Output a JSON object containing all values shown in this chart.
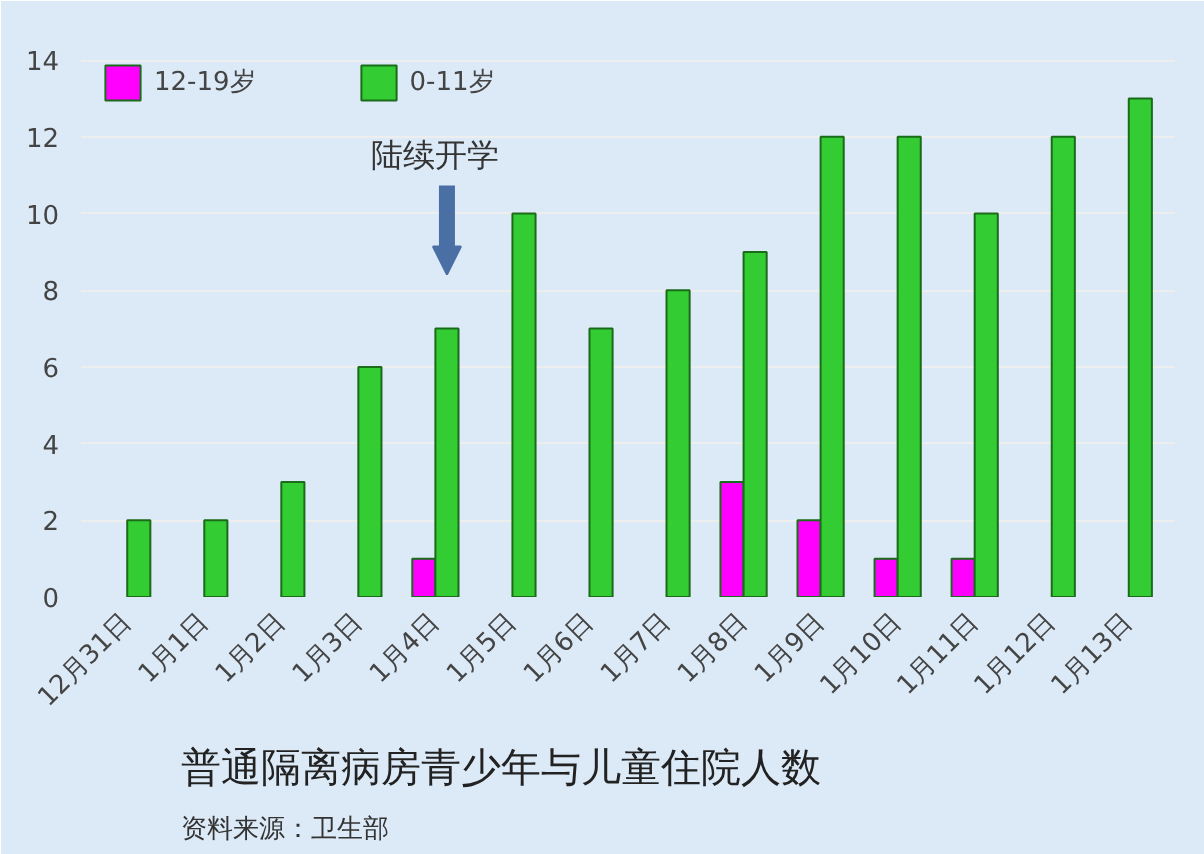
{
  "chart_data": {
    "type": "bar",
    "title": "普通隔离病房青少年与儿童住院人数",
    "categories": [
      "12月31日",
      "1月1日",
      "1月2日",
      "1月3日",
      "1月4日",
      "1月5日",
      "1月6日",
      "1月7日",
      "1月8日",
      "1月9日",
      "1月10日",
      "1月11日",
      "1月12日",
      "1月13日"
    ],
    "series": [
      {
        "name": "12-19岁",
        "color": "#ff00ff",
        "values": [
          null,
          null,
          null,
          null,
          1,
          null,
          null,
          null,
          3,
          2,
          1,
          1,
          null,
          null
        ]
      },
      {
        "name": "0-11岁",
        "color": "#33cc33",
        "values": [
          2,
          2,
          3,
          6,
          7,
          10,
          7,
          8,
          9,
          12,
          12,
          10,
          12,
          13
        ]
      }
    ],
    "ylim": [
      0,
      14.5
    ],
    "yticks": [
      0,
      2,
      4,
      6,
      8,
      10,
      12,
      14
    ],
    "grid": "y",
    "legend": "top left",
    "annotations": [
      "陆续开学",
      "资料来源：卫生部"
    ]
  }
}
